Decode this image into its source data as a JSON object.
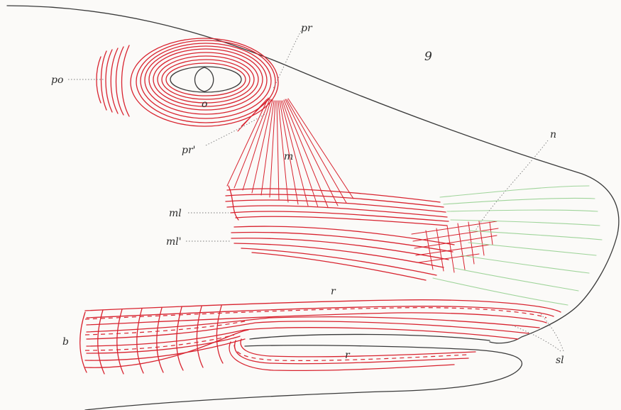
{
  "figure_number": "9",
  "labels": {
    "po": "po",
    "o": "o",
    "pr": "pr",
    "pr_prime": "pr'",
    "m": "m",
    "ml": "ml",
    "ml_prime": "ml'",
    "n": "n",
    "r_upper": "r",
    "r_lower": "r",
    "b": "b",
    "sl": "sl"
  },
  "colors": {
    "muscle": "#d8232f",
    "tendon": "#9fd49a",
    "outline": "#3a3a3a"
  }
}
